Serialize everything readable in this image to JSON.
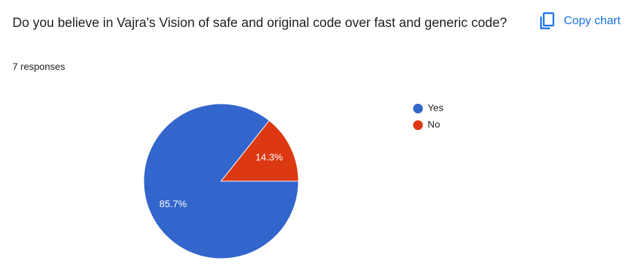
{
  "chart_data": {
    "type": "pie",
    "title": "Do you believe in Vajra's Vision of safe and original code over fast and generic code?",
    "subtitle": "7 responses",
    "categories": [
      "Yes",
      "No"
    ],
    "values": [
      85.7,
      14.3
    ],
    "value_labels": [
      "85.7%",
      "14.3%"
    ],
    "colors": [
      "#3366cc",
      "#dc3912"
    ],
    "legend": "right"
  },
  "copy_button": "Copy chart"
}
